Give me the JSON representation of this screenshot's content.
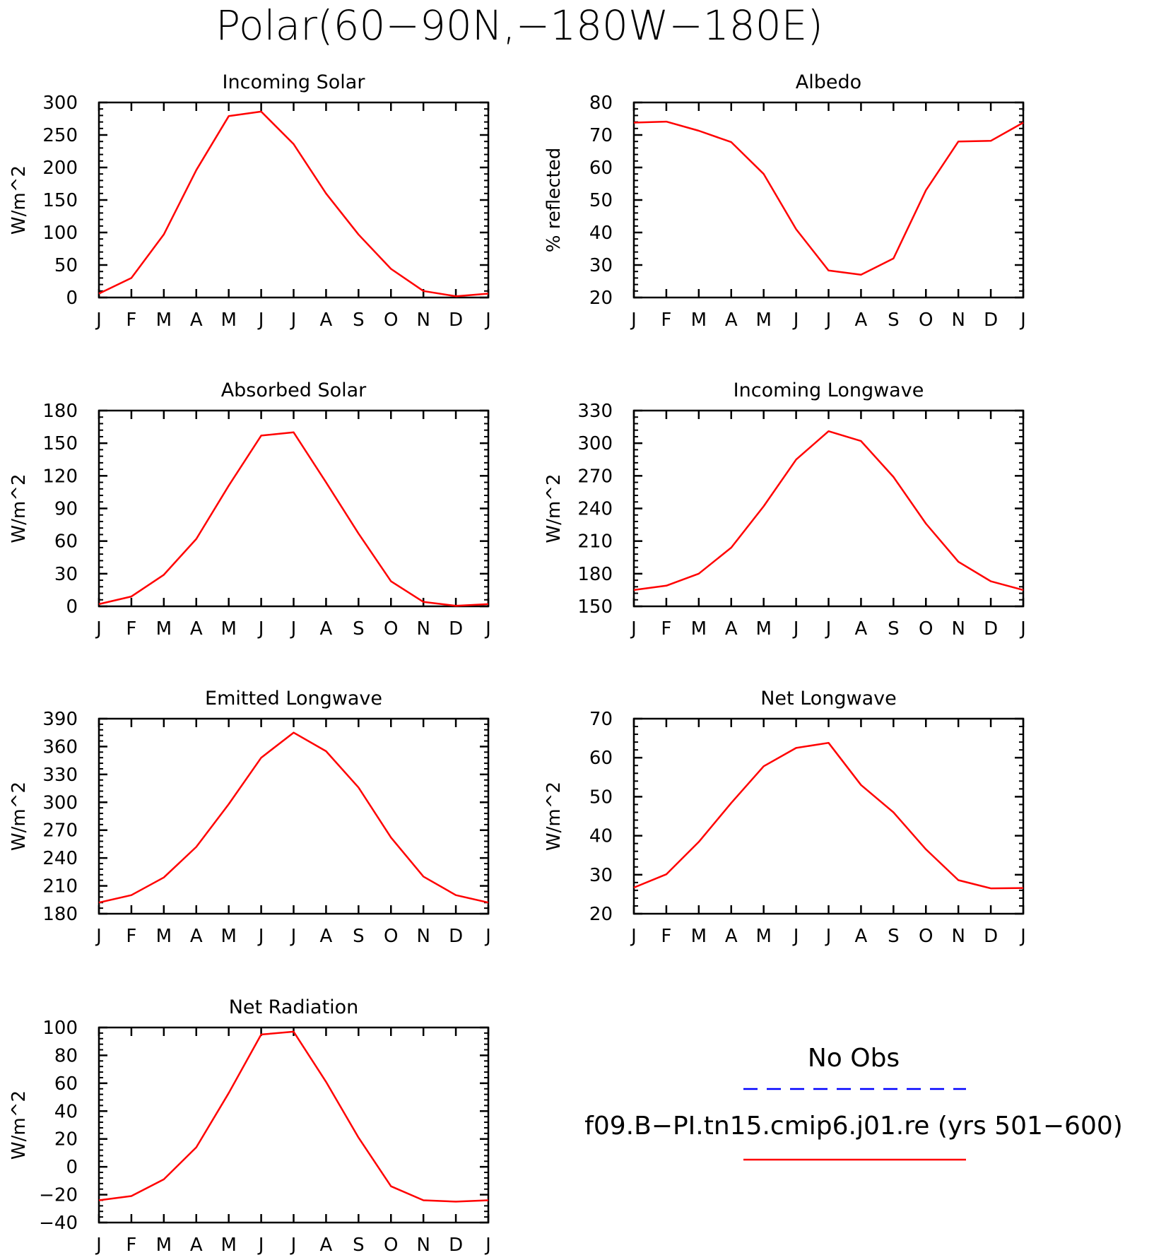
{
  "figure": {
    "title": "Polar(60−90N,−180W−180E)",
    "colors": {
      "model": "#ff0000",
      "obs": "#0000ff",
      "axis": "#000000"
    }
  },
  "legend": {
    "obs_label": "No Obs",
    "model_label": "f09.B−PI.tn15.cmip6.j01.re (yrs 501−600)"
  },
  "chart_data": [
    {
      "id": "incoming-solar",
      "type": "line",
      "title": "Incoming Solar",
      "xlabel": "",
      "ylabel": "W/m^2",
      "categories": [
        "J",
        "F",
        "M",
        "A",
        "M",
        "J",
        "J",
        "A",
        "S",
        "O",
        "N",
        "D",
        "J"
      ],
      "ylim": [
        0,
        300
      ],
      "yticks": [
        0,
        50,
        100,
        150,
        200,
        250,
        300
      ],
      "yticklabels": [
        "0",
        "50",
        "100",
        "150",
        "200",
        "250",
        "300"
      ],
      "series": [
        {
          "values": [
            6,
            30,
            97,
            196,
            279,
            286,
            236,
            160,
            97,
            44,
            10,
            2,
            6
          ]
        }
      ]
    },
    {
      "id": "albedo",
      "type": "line",
      "title": "Albedo",
      "xlabel": "",
      "ylabel": "% reflected",
      "categories": [
        "J",
        "F",
        "M",
        "A",
        "M",
        "J",
        "J",
        "A",
        "S",
        "O",
        "N",
        "D",
        "J"
      ],
      "ylim": [
        20,
        80
      ],
      "yticks": [
        20,
        30,
        40,
        50,
        60,
        70,
        80
      ],
      "yticklabels": [
        "20",
        "30",
        "40",
        "50",
        "60",
        "70",
        "80"
      ],
      "series": [
        {
          "values": [
            73.8,
            74.1,
            71.3,
            67.8,
            58,
            41,
            28.3,
            27,
            32,
            53,
            68,
            68.2,
            73.8
          ]
        }
      ]
    },
    {
      "id": "absorbed-solar",
      "type": "line",
      "title": "Absorbed Solar",
      "xlabel": "",
      "ylabel": "W/m^2",
      "categories": [
        "J",
        "F",
        "M",
        "A",
        "M",
        "J",
        "J",
        "A",
        "S",
        "O",
        "N",
        "D",
        "J"
      ],
      "ylim": [
        0,
        180
      ],
      "yticks": [
        0,
        30,
        60,
        90,
        120,
        150,
        180
      ],
      "yticklabels": [
        "0",
        "30",
        "60",
        "90",
        "120",
        "150",
        "180"
      ],
      "series": [
        {
          "values": [
            2,
            9,
            29,
            62,
            111,
            157,
            160,
            114,
            67,
            23,
            4,
            0.5,
            2
          ]
        }
      ]
    },
    {
      "id": "incoming-longwave",
      "type": "line",
      "title": "Incoming Longwave",
      "xlabel": "",
      "ylabel": "W/m^2",
      "categories": [
        "J",
        "F",
        "M",
        "A",
        "M",
        "J",
        "J",
        "A",
        "S",
        "O",
        "N",
        "D",
        "J"
      ],
      "ylim": [
        150,
        330
      ],
      "yticks": [
        150,
        180,
        210,
        240,
        270,
        300,
        330
      ],
      "yticklabels": [
        "150",
        "180",
        "210",
        "240",
        "270",
        "300",
        "330"
      ],
      "series": [
        {
          "values": [
            165,
            169,
            180,
            204,
            242,
            285,
            311,
            302,
            269,
            226,
            191,
            173,
            165
          ]
        }
      ]
    },
    {
      "id": "emitted-longwave",
      "type": "line",
      "title": "Emitted Longwave",
      "xlabel": "",
      "ylabel": "W/m^2",
      "categories": [
        "J",
        "F",
        "M",
        "A",
        "M",
        "J",
        "J",
        "A",
        "S",
        "O",
        "N",
        "D",
        "J"
      ],
      "ylim": [
        180,
        390
      ],
      "yticks": [
        180,
        210,
        240,
        270,
        300,
        330,
        360,
        390
      ],
      "yticklabels": [
        "180",
        "210",
        "240",
        "270",
        "300",
        "330",
        "360",
        "390"
      ],
      "series": [
        {
          "values": [
            192,
            200,
            219,
            252,
            298,
            348,
            375,
            355,
            316,
            262,
            220,
            200,
            192
          ]
        }
      ]
    },
    {
      "id": "net-longwave",
      "type": "line",
      "title": "Net Longwave",
      "xlabel": "",
      "ylabel": "W/m^2",
      "categories": [
        "J",
        "F",
        "M",
        "A",
        "M",
        "J",
        "J",
        "A",
        "S",
        "O",
        "N",
        "D",
        "J"
      ],
      "ylim": [
        20,
        70
      ],
      "yticks": [
        20,
        30,
        40,
        50,
        60,
        70
      ],
      "yticklabels": [
        "20",
        "30",
        "40",
        "50",
        "60",
        "70"
      ],
      "series": [
        {
          "values": [
            26.7,
            30.1,
            38.4,
            48.4,
            57.8,
            62.5,
            63.8,
            53,
            46,
            36.5,
            28.6,
            26.5,
            26.6
          ]
        }
      ]
    },
    {
      "id": "net-radiation",
      "type": "line",
      "title": "Net Radiation",
      "xlabel": "",
      "ylabel": "W/m^2",
      "categories": [
        "J",
        "F",
        "M",
        "A",
        "M",
        "J",
        "J",
        "A",
        "S",
        "O",
        "N",
        "D",
        "J"
      ],
      "ylim": [
        -40,
        100
      ],
      "yticks": [
        -40,
        -20,
        0,
        20,
        40,
        60,
        80,
        100
      ],
      "yticklabels": [
        "−40",
        "−20",
        "0",
        "20",
        "40",
        "60",
        "80",
        "100"
      ],
      "series": [
        {
          "values": [
            -24,
            -21,
            -9,
            14,
            53,
            95,
            97,
            61,
            21,
            -14,
            -24,
            -25,
            -24
          ]
        }
      ]
    }
  ]
}
